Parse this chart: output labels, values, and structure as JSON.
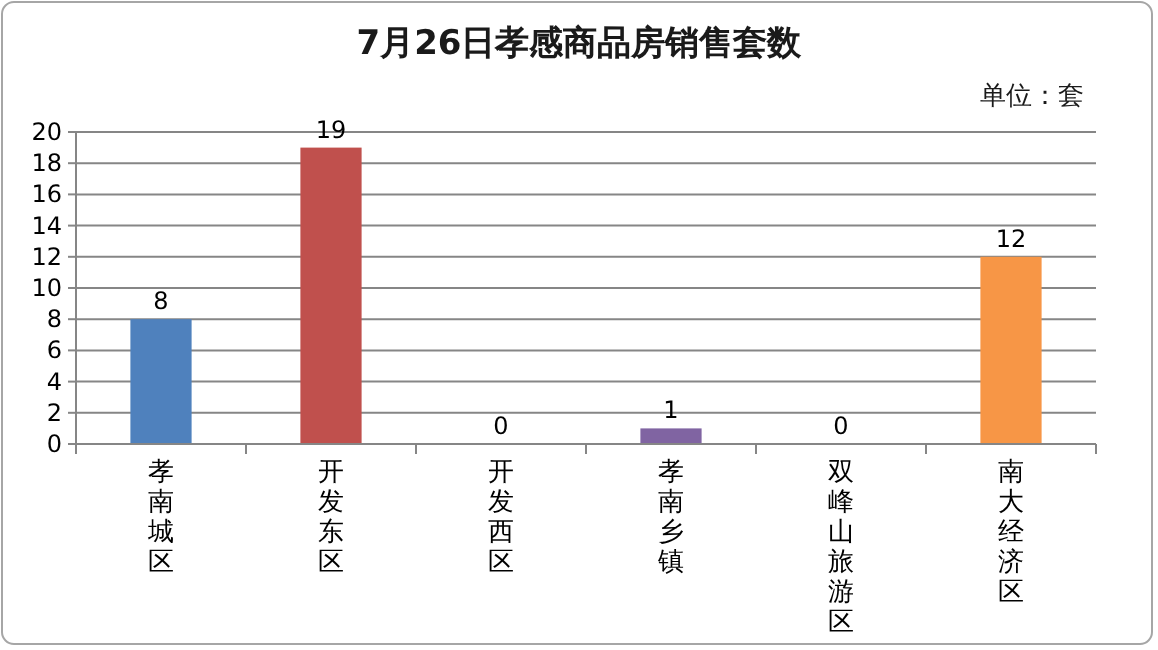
{
  "chart_data": {
    "type": "bar",
    "title": "7月26日孝感商品房销售套数",
    "annotations": [
      "单位：套"
    ],
    "categories": [
      "孝南城区",
      "开发东区",
      "开发西区",
      "孝南乡镇",
      "双峰山旅游区",
      "南大经济区"
    ],
    "values": [
      8,
      19,
      0,
      1,
      0,
      12
    ],
    "colors": [
      "#4f81bd",
      "#c0504d",
      "#9bbb59",
      "#8064a2",
      "#4bacc6",
      "#f79646"
    ],
    "ylim": [
      0,
      20
    ],
    "yticks": [
      0,
      2,
      4,
      6,
      8,
      10,
      12,
      14,
      16,
      18,
      20
    ],
    "grid": "y",
    "data_labels": true
  }
}
